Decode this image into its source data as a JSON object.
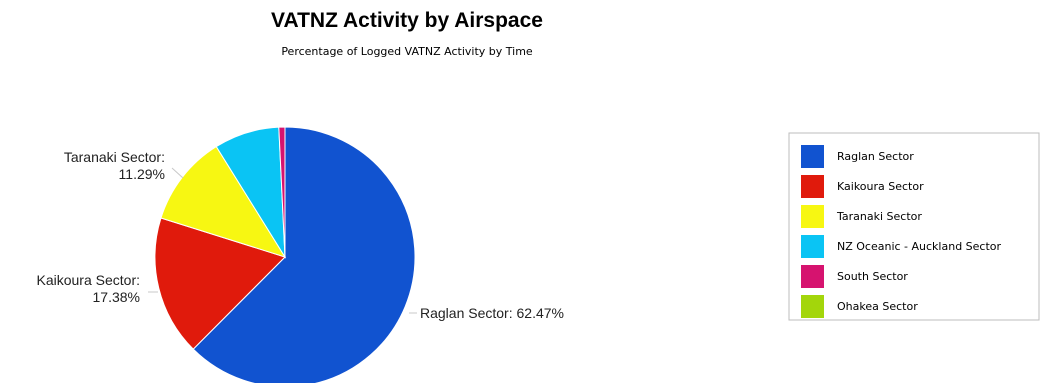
{
  "chart_data": {
    "type": "pie",
    "title": "VATNZ Activity by Airspace",
    "subtitle": "Percentage of Logged VATNZ Activity by Time",
    "slices": [
      {
        "name": "Raglan Sector",
        "value": 62.47,
        "color": "#1153d0",
        "label_line1": "Raglan Sector: 62.47%",
        "label_line2": ""
      },
      {
        "name": "Kaikoura Sector",
        "value": 17.38,
        "color": "#e01a0c",
        "label_line1": "Kaikoura Sector:",
        "label_line2": "17.38%"
      },
      {
        "name": "Taranaki Sector",
        "value": 11.29,
        "color": "#f7f712",
        "label_line1": "Taranaki Sector:",
        "label_line2": "11.29%"
      },
      {
        "name": "NZ Oceanic - Auckland Sector",
        "value": 8.1,
        "color": "#0ac4f4",
        "label_line1": "",
        "label_line2": ""
      },
      {
        "name": "South Sector",
        "value": 0.76,
        "color": "#d6136f",
        "label_line1": "",
        "label_line2": ""
      },
      {
        "name": "Ohakea Sector",
        "value": 0.0,
        "color": "#a3d60b",
        "label_line1": "",
        "label_line2": ""
      }
    ],
    "legend": {
      "position": "right",
      "items": [
        "Raglan Sector",
        "Kaikoura Sector",
        "Taranaki Sector",
        "NZ Oceanic - Auckland Sector",
        "South Sector",
        "Ohakea Sector"
      ]
    }
  }
}
